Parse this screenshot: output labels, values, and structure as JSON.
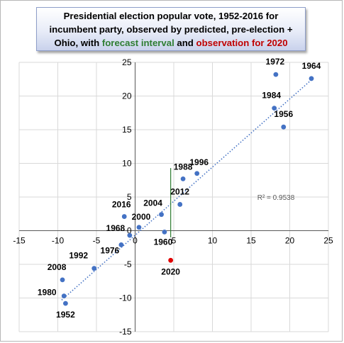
{
  "title": {
    "line1": "Presidential election popular vote, 1952-2016 for",
    "line2": "incumbent party, observed by predicted, pre-election +",
    "line3_prefix": "Ohio, with",
    "line3_forecast": "forecast interval",
    "line3_and": "and",
    "line3_observation": "observation for 2020"
  },
  "colors": {
    "points": "#4472c4",
    "trendline": "#4472c4",
    "forecast_interval": "#2e7d32",
    "observation_2020": "#e00000",
    "axis": "#000000",
    "gridlines": "#d9d9d9",
    "title_green": "#2e7d32",
    "title_red": "#c00000"
  },
  "chart_data": {
    "type": "scatter",
    "xlim": [
      -15,
      25
    ],
    "ylim": [
      -15,
      25
    ],
    "x_ticks": [
      -15,
      -10,
      -5,
      0,
      5,
      10,
      15,
      20,
      25
    ],
    "y_ticks": [
      -15,
      -10,
      -5,
      0,
      5,
      10,
      15,
      20,
      25
    ],
    "grid": "horizontal and vertical",
    "points": [
      {
        "label": "1952",
        "x": -9.0,
        "y": -10.8
      },
      {
        "label": "1956",
        "x": 19.2,
        "y": 15.4
      },
      {
        "label": "1960",
        "x": 3.8,
        "y": -0.2
      },
      {
        "label": "1964",
        "x": 22.8,
        "y": 22.6
      },
      {
        "label": "1968",
        "x": -0.7,
        "y": -0.7
      },
      {
        "label": "1972",
        "x": 18.2,
        "y": 23.2
      },
      {
        "label": "1976",
        "x": -1.8,
        "y": -2.1
      },
      {
        "label": "1980",
        "x": -9.2,
        "y": -9.7
      },
      {
        "label": "1984",
        "x": 18.0,
        "y": 18.2
      },
      {
        "label": "1988",
        "x": 6.2,
        "y": 7.7
      },
      {
        "label": "1992",
        "x": -5.3,
        "y": -5.6
      },
      {
        "label": "1996",
        "x": 8.0,
        "y": 8.5
      },
      {
        "label": "2000",
        "x": 0.5,
        "y": 0.5
      },
      {
        "label": "2004",
        "x": 3.4,
        "y": 2.4
      },
      {
        "label": "2008",
        "x": -9.4,
        "y": -7.3
      },
      {
        "label": "2012",
        "x": 5.8,
        "y": 3.9
      },
      {
        "label": "2016",
        "x": -1.4,
        "y": 2.1
      }
    ],
    "observation_2020": {
      "label": "2020",
      "x": 4.6,
      "y": -4.4
    },
    "forecast_interval_2020": {
      "x": 4.6,
      "low": -1.0,
      "high": 9.3
    },
    "trendline": {
      "style": "dotted linear",
      "from": [
        -9.5,
        -10.3
      ],
      "to": [
        23.0,
        22.6
      ]
    },
    "r_squared_label": "R² = 0.9538",
    "r_squared_position": [
      15.8,
      4.6
    ]
  }
}
